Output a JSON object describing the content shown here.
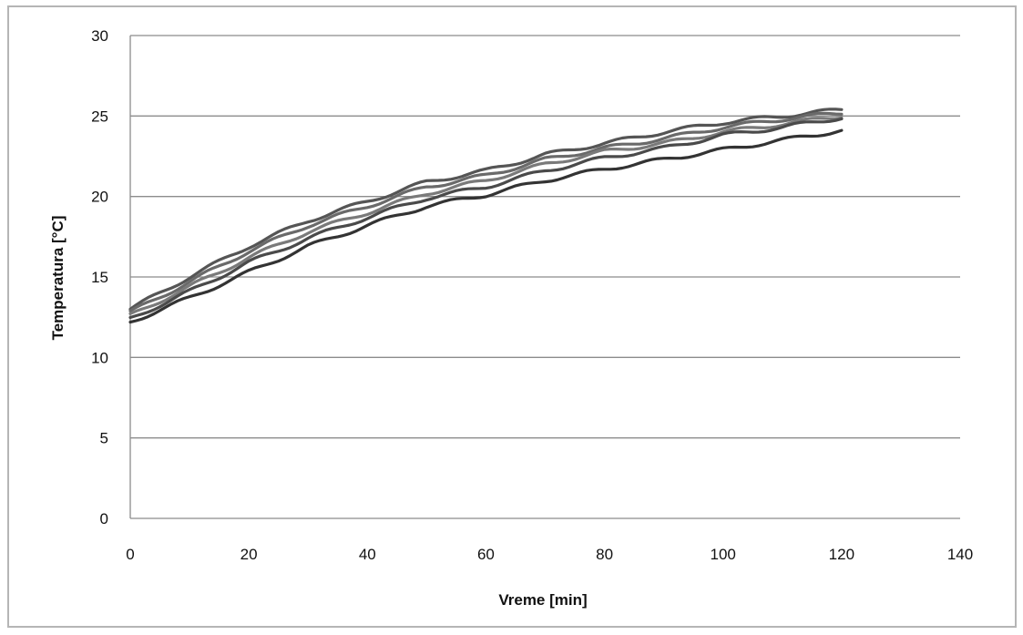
{
  "chart_data": {
    "type": "line",
    "title": "",
    "xlabel": "Vreme [min]",
    "ylabel": "Temperatura [°C]",
    "xlim": [
      0,
      140
    ],
    "ylim": [
      0,
      30
    ],
    "xticks": [
      0,
      20,
      40,
      60,
      80,
      100,
      120,
      140
    ],
    "yticks": [
      0,
      5,
      10,
      15,
      20,
      25,
      30
    ],
    "grid": "horizontal",
    "legend": "none",
    "x": [
      0,
      10,
      20,
      30,
      40,
      50,
      60,
      70,
      80,
      90,
      100,
      110,
      120
    ],
    "series": [
      {
        "values": [
          13.0,
          15.0,
          16.9,
          18.5,
          19.7,
          20.9,
          21.6,
          22.6,
          23.3,
          24.0,
          24.6,
          25.0,
          25.4
        ],
        "color": "#555555"
      },
      {
        "values": [
          12.8,
          14.7,
          16.6,
          18.2,
          19.4,
          20.6,
          21.3,
          22.3,
          23.0,
          23.6,
          24.3,
          24.8,
          25.2
        ],
        "color": "#6a6a6a"
      },
      {
        "values": [
          12.6,
          14.4,
          16.2,
          17.8,
          19.0,
          20.2,
          21.0,
          22.0,
          22.8,
          23.3,
          24.0,
          24.5,
          25.0
        ],
        "color": "#7a7a7a"
      },
      {
        "values": [
          12.4,
          14.1,
          15.9,
          17.4,
          18.7,
          19.9,
          20.6,
          21.6,
          22.4,
          23.0,
          23.8,
          24.3,
          24.9
        ],
        "color": "#4a4a4a"
      },
      {
        "values": [
          12.2,
          13.7,
          15.3,
          16.9,
          18.2,
          19.4,
          20.1,
          21.0,
          21.7,
          22.3,
          22.9,
          23.5,
          24.1
        ],
        "color": "#333333"
      }
    ]
  }
}
